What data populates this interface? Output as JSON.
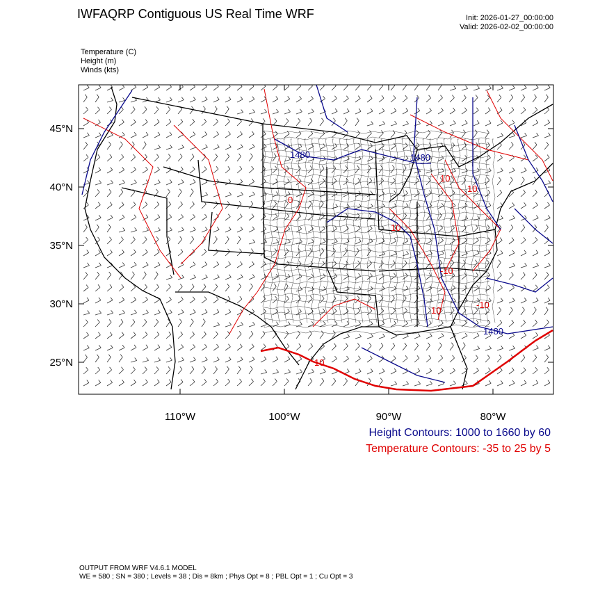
{
  "title": "IWFAQRP Contiguous US Real Time WRF",
  "init": "Init: 2026-01-27_00:00:00",
  "valid": "Valid: 2026-02-02_00:00:00",
  "fields": [
    "Temperature   (C)",
    "Height   (m)",
    "Winds   (kts)"
  ],
  "map": {
    "lat_labels": [
      "45°N",
      "40°N",
      "35°N",
      "30°N",
      "25°N"
    ],
    "lon_labels": [
      "110°W",
      "100°W",
      "90°W",
      "80°W"
    ],
    "height_contour_labels": [
      "1480",
      "1480",
      "1480"
    ],
    "temp_contour_labels": [
      "10",
      "10",
      "10",
      "-10",
      "10",
      "-10",
      "10",
      "0"
    ],
    "colors": {
      "height": "#0a0a8c",
      "temperature": "#e00000",
      "borders": "#000000"
    }
  },
  "legend": {
    "height": "Height Contours: 1000 to 1660 by 60",
    "temperature": "Temperature Contours: -35 to 25 by 5"
  },
  "footer": {
    "line1": "OUTPUT FROM WRF V4.6.1 MODEL",
    "line2": "WE = 580 ; SN = 380 ; Levels = 38 ; Dis = 8km ; Phys Opt = 8 ; PBL Opt = 1 ; Cu Opt = 3"
  }
}
